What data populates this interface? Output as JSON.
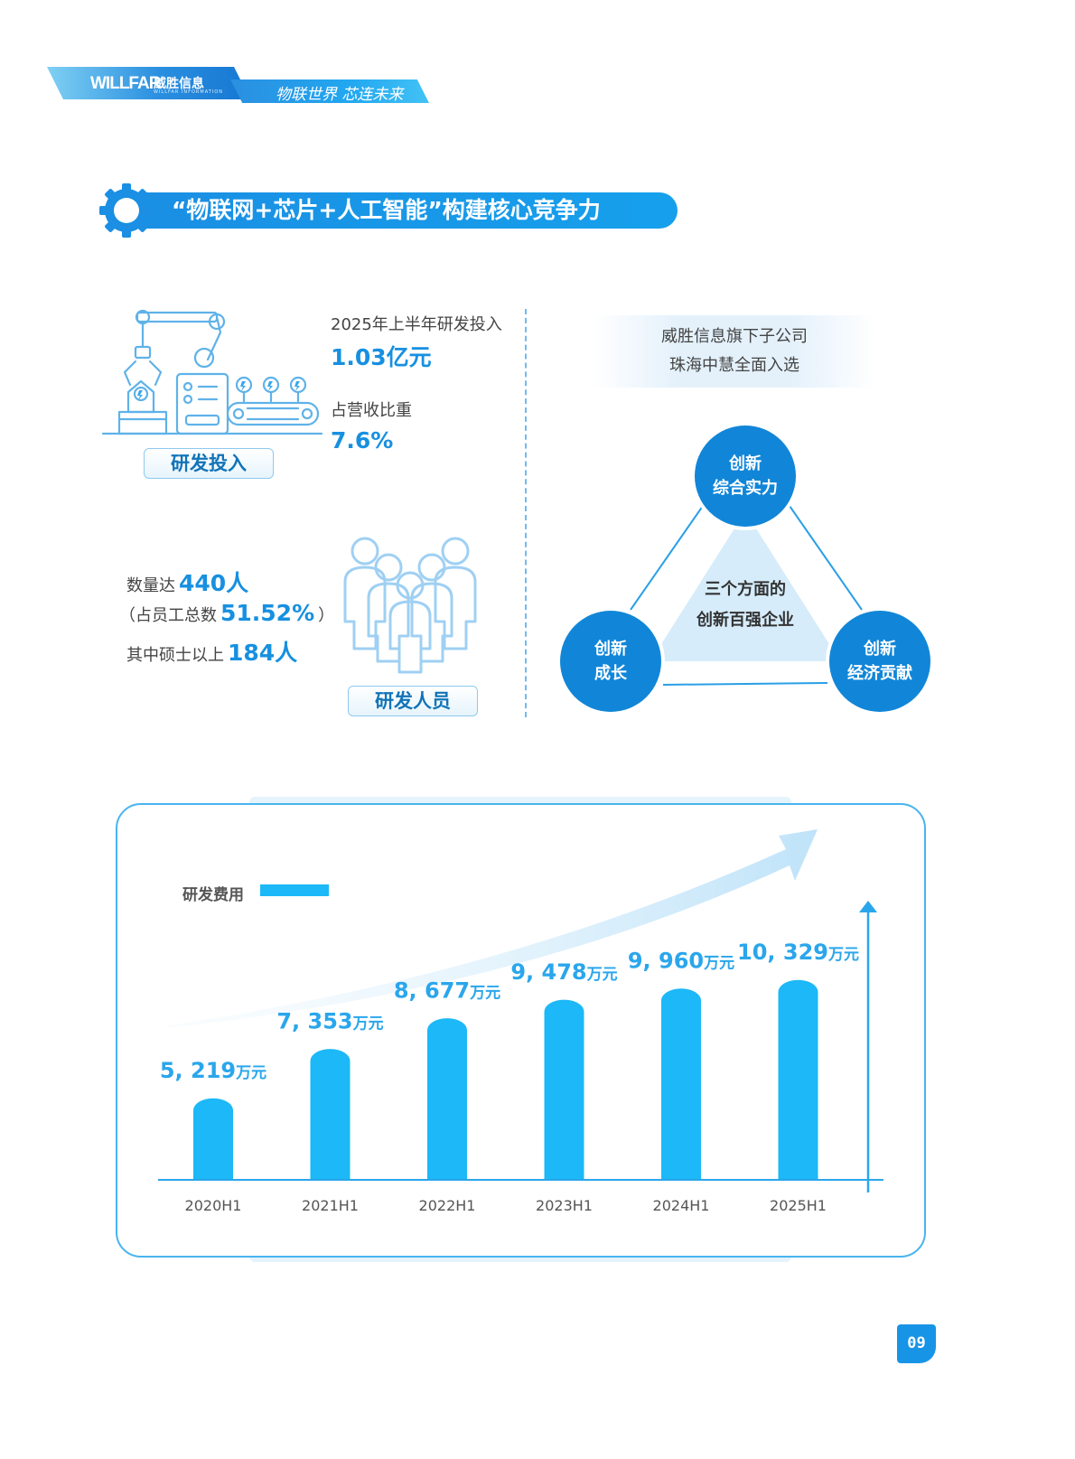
{
  "header": {
    "logo_text": "WILLFAR",
    "brand_name": "威胜信息",
    "brand_sub": "WILLFAR INFORMATION",
    "slogan": "物联世界 芯连未来"
  },
  "section_title": "“物联网+芯片+人工智能”构建核心竞争力",
  "rd_investment": {
    "label1": "2025年上半年研发投入",
    "value1": "1.03亿元",
    "label2": "占营收比重",
    "value2": "7.6%",
    "button": "研发投入"
  },
  "rd_staff": {
    "line1_prefix": "数量达",
    "line1_value": "440人",
    "line2_prefix": "（占员工总数",
    "line2_value": "51.52%",
    "line2_suffix": "）",
    "line3_prefix": "其中硕士以上",
    "line3_value": "184人",
    "button": "研发人员"
  },
  "innovation": {
    "line1": "威胜信息旗下子公司",
    "line2": "珠海中慧全面入选",
    "center_line1": "三个方面的",
    "center_line2": "创新百强企业",
    "top_l1": "创新",
    "top_l2": "综合实力",
    "left_l1": "创新",
    "left_l2": "成长",
    "right_l1": "创新",
    "right_l2": "经济贡献"
  },
  "colors": {
    "primary": "#1790e0",
    "bar": "#1cb8f7",
    "circle": "#1186d8",
    "axis": "#2aa6ec"
  },
  "chart_data": {
    "type": "bar",
    "categories": [
      "2020H1",
      "2021H1",
      "2022H1",
      "2023H1",
      "2024H1",
      "2025H1"
    ],
    "series": [
      {
        "name": "研发费用",
        "values": [
          5219,
          7353,
          8677,
          9478,
          9960,
          10329
        ]
      }
    ],
    "value_labels": [
      "5, 219",
      "7, 353",
      "8, 677",
      "9, 478",
      "9, 960",
      "10, 329"
    ],
    "unit": "万元",
    "legend": "研发费用",
    "legend_position": "top-left",
    "grid": false
  },
  "page_number": "09"
}
